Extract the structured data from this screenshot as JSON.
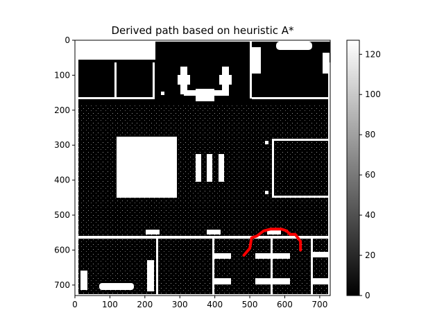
{
  "chart_data": {
    "type": "heatmap",
    "title": "Derived path based on heuristic A*",
    "xlabel": "",
    "ylabel": "",
    "xlim": [
      0,
      730
    ],
    "ylim": [
      730,
      0
    ],
    "x_ticks": [
      0,
      100,
      200,
      300,
      400,
      500,
      600,
      700
    ],
    "y_ticks": [
      0,
      100,
      200,
      300,
      400,
      500,
      600,
      700
    ],
    "colorbar": {
      "colormap": "gray",
      "range": [
        0,
        127
      ],
      "ticks": [
        0,
        20,
        40,
        60,
        80,
        100,
        120
      ]
    },
    "path": {
      "color": "#ff0000",
      "points": [
        [
          483,
          615
        ],
        [
          500,
          595
        ],
        [
          505,
          565
        ],
        [
          520,
          560
        ],
        [
          540,
          545
        ],
        [
          560,
          540
        ],
        [
          590,
          540
        ],
        [
          605,
          545
        ],
        [
          615,
          555
        ],
        [
          630,
          555
        ],
        [
          645,
          575
        ],
        [
          645,
          600
        ]
      ]
    }
  }
}
